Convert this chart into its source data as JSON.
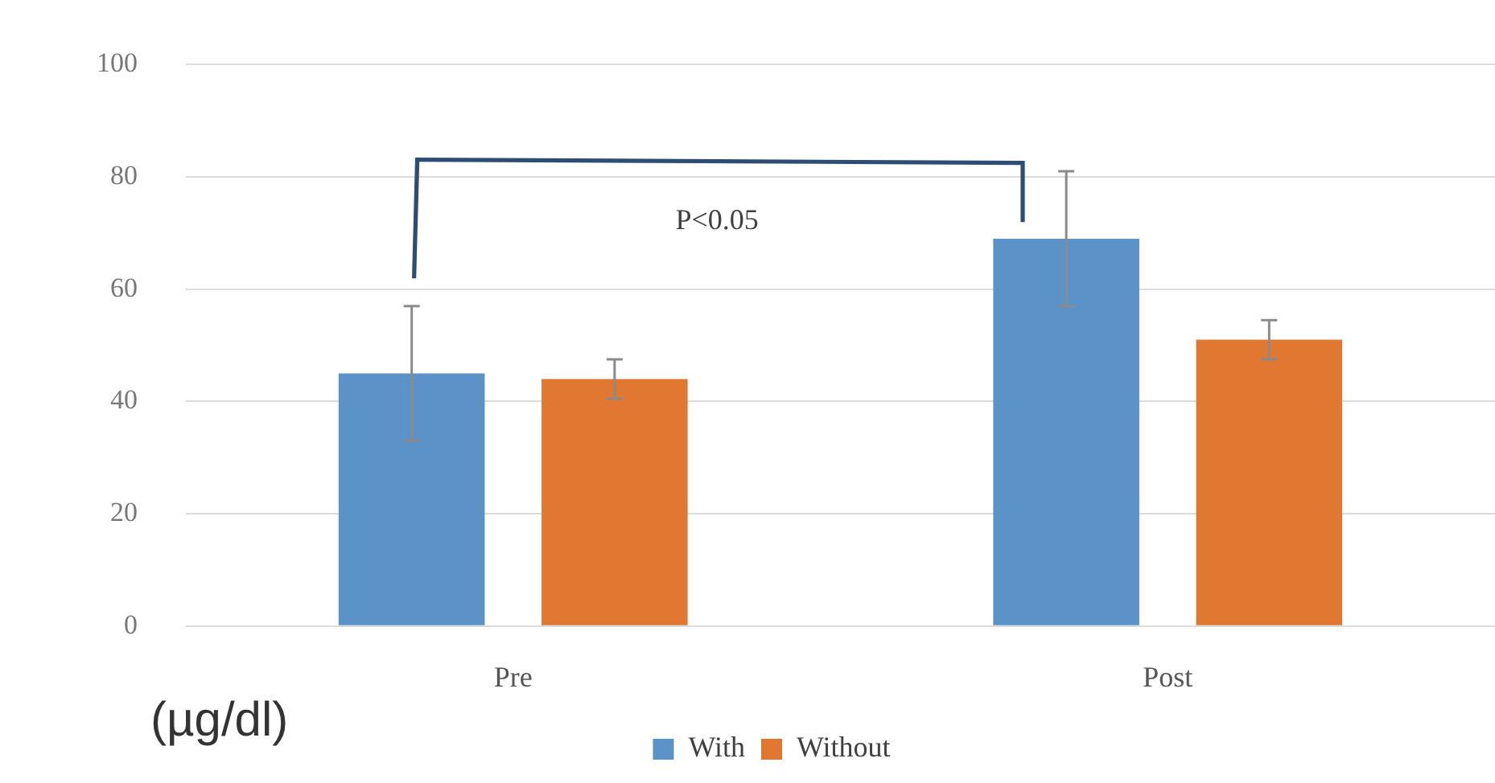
{
  "chart_data": {
    "type": "bar",
    "categories": [
      "Pre",
      "Post"
    ],
    "series": [
      {
        "name": "With",
        "color": "#5b93c9",
        "values": [
          45,
          69
        ],
        "errors": [
          12,
          12
        ]
      },
      {
        "name": "Without",
        "color": "#e07832",
        "values": [
          44,
          51
        ],
        "errors": [
          3.5,
          3.5
        ]
      }
    ],
    "ylim": [
      0,
      100
    ],
    "yticks": [
      0,
      20,
      40,
      60,
      80,
      100
    ],
    "grid": "y",
    "legend": "bottom",
    "annotations": [
      "P<0.05",
      "(µg/dl)"
    ]
  }
}
